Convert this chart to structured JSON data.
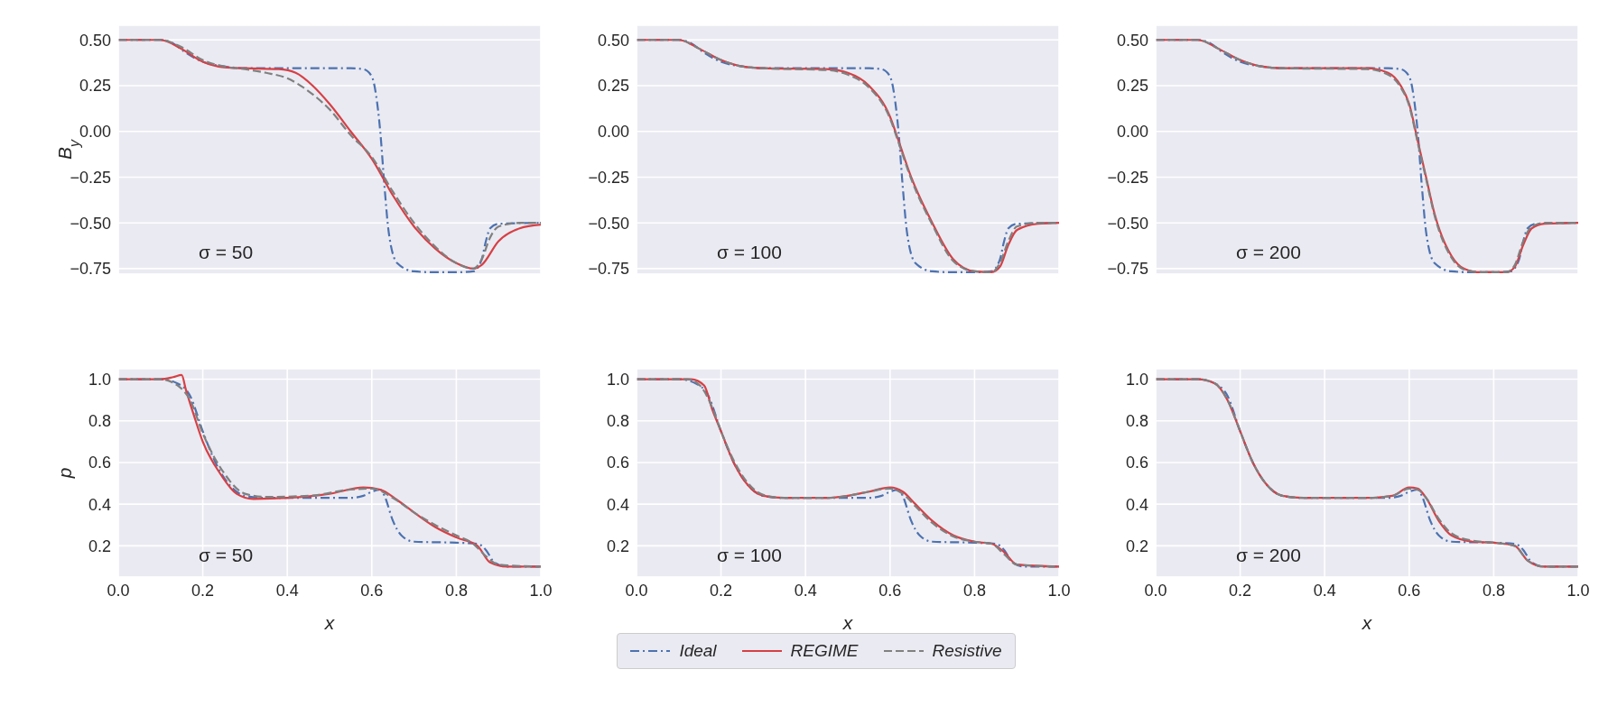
{
  "chart_data": [
    {
      "type": "line",
      "ylabel": "B$_{y}$",
      "annotations": [
        "σ = 50"
      ],
      "xlim": [
        0,
        1
      ],
      "ylim": [
        -0.78,
        0.58
      ],
      "xticks": [
        {
          "value": 0,
          "label": null
        },
        {
          "value": 0.2,
          "label": null
        },
        {
          "value": 0.4,
          "label": null
        },
        {
          "value": 0.6,
          "label": null
        },
        {
          "value": 0.8,
          "label": null
        },
        {
          "value": 1,
          "label": null
        }
      ],
      "yticks": [
        {
          "value": -0.75,
          "label": "−0.75"
        },
        {
          "value": -0.5,
          "label": "−0.50"
        },
        {
          "value": -0.25,
          "label": "−0.25"
        },
        {
          "value": 0,
          "label": "0.00"
        },
        {
          "value": 0.25,
          "label": "0.25"
        },
        {
          "value": 0.5,
          "label": "0.50"
        }
      ],
      "grid": true,
      "tick_labels": "y",
      "series": [
        {
          "color": "#4c72b0",
          "line_style": "dashdot",
          "x": [
            0,
            0.1,
            0.13,
            0.16,
            0.2,
            0.25,
            0.3,
            0.4,
            0.55,
            0.58,
            0.6,
            0.61,
            0.62,
            0.63,
            0.64,
            0.66,
            0.7,
            0.75,
            0.8,
            0.84,
            0.86,
            0.87,
            0.88,
            0.9,
            1
          ],
          "values": [
            0.5,
            0.5,
            0.48,
            0.43,
            0.38,
            0.355,
            0.345,
            0.345,
            0.345,
            0.34,
            0.3,
            0.2,
            0,
            -0.3,
            -0.55,
            -0.72,
            -0.765,
            -0.77,
            -0.77,
            -0.765,
            -0.7,
            -0.6,
            -0.53,
            -0.505,
            -0.5
          ]
        },
        {
          "color": "#d64045",
          "line_style": "solid",
          "x": [
            0,
            0.1,
            0.15,
            0.2,
            0.25,
            0.3,
            0.38,
            0.42,
            0.46,
            0.5,
            0.55,
            0.6,
            0.65,
            0.7,
            0.75,
            0.8,
            0.84,
            0.86,
            0.9,
            0.95,
            1
          ],
          "values": [
            0.5,
            0.5,
            0.45,
            0.38,
            0.35,
            0.345,
            0.34,
            0.32,
            0.25,
            0.15,
            0,
            -0.15,
            -0.35,
            -0.52,
            -0.64,
            -0.72,
            -0.75,
            -0.73,
            -0.6,
            -0.53,
            -0.51
          ]
        },
        {
          "color": "#808080",
          "line_style": "dashed",
          "x": [
            0,
            0.1,
            0.15,
            0.2,
            0.25,
            0.3,
            0.35,
            0.4,
            0.45,
            0.5,
            0.55,
            0.6,
            0.65,
            0.7,
            0.75,
            0.8,
            0.84,
            0.86,
            0.88,
            0.9,
            0.95,
            1
          ],
          "values": [
            0.5,
            0.5,
            0.46,
            0.39,
            0.355,
            0.34,
            0.32,
            0.29,
            0.22,
            0.12,
            -0.02,
            -0.14,
            -0.33,
            -0.5,
            -0.63,
            -0.72,
            -0.75,
            -0.7,
            -0.58,
            -0.52,
            -0.5,
            -0.5
          ]
        }
      ]
    },
    {
      "type": "line",
      "annotations": [
        "σ = 100"
      ],
      "xlim": [
        0,
        1
      ],
      "ylim": [
        -0.78,
        0.58
      ],
      "xticks": [
        {
          "value": 0,
          "label": null
        },
        {
          "value": 0.2,
          "label": null
        },
        {
          "value": 0.4,
          "label": null
        },
        {
          "value": 0.6,
          "label": null
        },
        {
          "value": 0.8,
          "label": null
        },
        {
          "value": 1,
          "label": null
        }
      ],
      "yticks": [
        {
          "value": -0.75,
          "label": "−0.75"
        },
        {
          "value": -0.5,
          "label": "−0.50"
        },
        {
          "value": -0.25,
          "label": "−0.25"
        },
        {
          "value": 0,
          "label": "0.00"
        },
        {
          "value": 0.25,
          "label": "0.25"
        },
        {
          "value": 0.5,
          "label": "0.50"
        }
      ],
      "grid": true,
      "tick_labels": "y",
      "series": [
        {
          "color": "#4c72b0",
          "line_style": "dashdot",
          "x": [
            0,
            0.1,
            0.13,
            0.16,
            0.2,
            0.25,
            0.3,
            0.4,
            0.55,
            0.58,
            0.6,
            0.61,
            0.62,
            0.63,
            0.64,
            0.66,
            0.7,
            0.75,
            0.8,
            0.84,
            0.86,
            0.87,
            0.88,
            0.9,
            1
          ],
          "values": [
            0.5,
            0.5,
            0.48,
            0.43,
            0.38,
            0.355,
            0.345,
            0.345,
            0.345,
            0.34,
            0.3,
            0.2,
            0,
            -0.3,
            -0.55,
            -0.72,
            -0.765,
            -0.77,
            -0.77,
            -0.765,
            -0.7,
            -0.6,
            -0.53,
            -0.505,
            -0.5
          ]
        },
        {
          "color": "#d64045",
          "line_style": "solid",
          "x": [
            0,
            0.1,
            0.15,
            0.2,
            0.25,
            0.3,
            0.45,
            0.5,
            0.55,
            0.6,
            0.62,
            0.65,
            0.7,
            0.75,
            0.8,
            0.84,
            0.86,
            0.88,
            0.9,
            0.95,
            1
          ],
          "values": [
            0.5,
            0.5,
            0.45,
            0.39,
            0.355,
            0.345,
            0.34,
            0.32,
            0.25,
            0.08,
            -0.05,
            -0.25,
            -0.5,
            -0.7,
            -0.765,
            -0.77,
            -0.74,
            -0.62,
            -0.54,
            -0.505,
            -0.5
          ]
        },
        {
          "color": "#808080",
          "line_style": "dashed",
          "x": [
            0,
            0.1,
            0.15,
            0.2,
            0.25,
            0.3,
            0.45,
            0.5,
            0.55,
            0.6,
            0.62,
            0.65,
            0.7,
            0.75,
            0.8,
            0.84,
            0.86,
            0.88,
            0.9,
            0.95,
            1
          ],
          "values": [
            0.5,
            0.5,
            0.45,
            0.39,
            0.355,
            0.345,
            0.335,
            0.31,
            0.24,
            0.07,
            -0.06,
            -0.26,
            -0.51,
            -0.71,
            -0.765,
            -0.77,
            -0.72,
            -0.6,
            -0.52,
            -0.5,
            -0.5
          ]
        }
      ]
    },
    {
      "type": "line",
      "annotations": [
        "σ = 200"
      ],
      "xlim": [
        0,
        1
      ],
      "ylim": [
        -0.78,
        0.58
      ],
      "xticks": [
        {
          "value": 0,
          "label": null
        },
        {
          "value": 0.2,
          "label": null
        },
        {
          "value": 0.4,
          "label": null
        },
        {
          "value": 0.6,
          "label": null
        },
        {
          "value": 0.8,
          "label": null
        },
        {
          "value": 1,
          "label": null
        }
      ],
      "yticks": [
        {
          "value": -0.75,
          "label": "−0.75"
        },
        {
          "value": -0.5,
          "label": "−0.50"
        },
        {
          "value": -0.25,
          "label": "−0.25"
        },
        {
          "value": 0,
          "label": "0.00"
        },
        {
          "value": 0.25,
          "label": "0.25"
        },
        {
          "value": 0.5,
          "label": "0.50"
        }
      ],
      "grid": true,
      "tick_labels": "y",
      "series": [
        {
          "color": "#4c72b0",
          "line_style": "dashdot",
          "x": [
            0,
            0.1,
            0.13,
            0.16,
            0.2,
            0.25,
            0.3,
            0.4,
            0.55,
            0.58,
            0.6,
            0.61,
            0.62,
            0.63,
            0.64,
            0.66,
            0.7,
            0.75,
            0.8,
            0.84,
            0.86,
            0.87,
            0.88,
            0.9,
            1
          ],
          "values": [
            0.5,
            0.5,
            0.48,
            0.43,
            0.38,
            0.355,
            0.345,
            0.345,
            0.345,
            0.34,
            0.3,
            0.2,
            0,
            -0.3,
            -0.55,
            -0.72,
            -0.765,
            -0.77,
            -0.77,
            -0.765,
            -0.7,
            -0.6,
            -0.53,
            -0.505,
            -0.5
          ]
        },
        {
          "color": "#d64045",
          "line_style": "solid",
          "x": [
            0,
            0.1,
            0.15,
            0.2,
            0.25,
            0.3,
            0.5,
            0.55,
            0.58,
            0.6,
            0.62,
            0.64,
            0.66,
            0.7,
            0.73,
            0.77,
            0.83,
            0.85,
            0.87,
            0.89,
            0.92,
            1
          ],
          "values": [
            0.5,
            0.5,
            0.45,
            0.39,
            0.355,
            0.345,
            0.345,
            0.32,
            0.25,
            0.15,
            -0.05,
            -0.25,
            -0.45,
            -0.68,
            -0.75,
            -0.77,
            -0.77,
            -0.74,
            -0.62,
            -0.53,
            -0.505,
            -0.5
          ]
        },
        {
          "color": "#808080",
          "line_style": "dashed",
          "x": [
            0,
            0.1,
            0.15,
            0.2,
            0.25,
            0.3,
            0.5,
            0.55,
            0.58,
            0.6,
            0.62,
            0.64,
            0.66,
            0.7,
            0.73,
            0.77,
            0.83,
            0.85,
            0.87,
            0.89,
            0.92,
            1
          ],
          "values": [
            0.5,
            0.5,
            0.45,
            0.39,
            0.355,
            0.345,
            0.34,
            0.31,
            0.24,
            0.14,
            -0.06,
            -0.26,
            -0.46,
            -0.69,
            -0.755,
            -0.77,
            -0.77,
            -0.73,
            -0.6,
            -0.52,
            -0.5,
            -0.5
          ]
        }
      ]
    },
    {
      "type": "line",
      "xlabel": "x",
      "ylabel": "p",
      "annotations": [
        "σ = 50"
      ],
      "xlim": [
        0,
        1
      ],
      "ylim": [
        0.05,
        1.05
      ],
      "xticks": [
        {
          "value": 0,
          "label": "0.0"
        },
        {
          "value": 0.2,
          "label": "0.2"
        },
        {
          "value": 0.4,
          "label": "0.4"
        },
        {
          "value": 0.6,
          "label": "0.6"
        },
        {
          "value": 0.8,
          "label": "0.8"
        },
        {
          "value": 1,
          "label": "1.0"
        }
      ],
      "yticks": [
        0.2,
        0.4,
        0.6,
        0.8,
        {
          "value": 1,
          "label": "1.0"
        }
      ],
      "grid": true,
      "series": [
        {
          "color": "#4c72b0",
          "line_style": "dashdot",
          "x": [
            0,
            0.1,
            0.14,
            0.17,
            0.2,
            0.23,
            0.26,
            0.3,
            0.35,
            0.55,
            0.58,
            0.6,
            0.62,
            0.63,
            0.65,
            0.67,
            0.7,
            0.8,
            0.85,
            0.87,
            0.89,
            0.92,
            1
          ],
          "values": [
            1,
            1,
            0.98,
            0.92,
            0.75,
            0.6,
            0.5,
            0.44,
            0.43,
            0.43,
            0.44,
            0.46,
            0.47,
            0.44,
            0.32,
            0.25,
            0.22,
            0.215,
            0.21,
            0.18,
            0.12,
            0.1,
            0.1
          ]
        },
        {
          "color": "#d64045",
          "line_style": "solid",
          "x": [
            0,
            0.1,
            0.13,
            0.15,
            0.16,
            0.18,
            0.2,
            0.24,
            0.28,
            0.32,
            0.4,
            0.5,
            0.58,
            0.62,
            0.66,
            0.7,
            0.75,
            0.8,
            0.85,
            0.88,
            0.92,
            1
          ],
          "values": [
            1,
            1,
            1.01,
            1.02,
            0.95,
            0.82,
            0.7,
            0.55,
            0.45,
            0.425,
            0.43,
            0.45,
            0.48,
            0.47,
            0.42,
            0.36,
            0.29,
            0.24,
            0.2,
            0.12,
            0.1,
            0.1
          ]
        },
        {
          "color": "#808080",
          "line_style": "dashed",
          "x": [
            0,
            0.1,
            0.14,
            0.17,
            0.2,
            0.25,
            0.3,
            0.35,
            0.45,
            0.55,
            0.6,
            0.65,
            0.7,
            0.75,
            0.8,
            0.84,
            0.87,
            0.9,
            1
          ],
          "values": [
            1,
            1,
            0.97,
            0.9,
            0.74,
            0.55,
            0.45,
            0.435,
            0.44,
            0.47,
            0.475,
            0.43,
            0.36,
            0.3,
            0.25,
            0.21,
            0.15,
            0.11,
            0.1
          ]
        }
      ]
    },
    {
      "type": "line",
      "xlabel": "x",
      "annotations": [
        "σ = 100"
      ],
      "legend": "bottom",
      "xlim": [
        0,
        1
      ],
      "ylim": [
        0.05,
        1.05
      ],
      "xticks": [
        {
          "value": 0,
          "label": "0.0"
        },
        {
          "value": 0.2,
          "label": "0.2"
        },
        {
          "value": 0.4,
          "label": "0.4"
        },
        {
          "value": 0.6,
          "label": "0.6"
        },
        {
          "value": 0.8,
          "label": "0.8"
        },
        {
          "value": 1,
          "label": "1.0"
        }
      ],
      "yticks": [
        0.2,
        0.4,
        0.6,
        0.8,
        {
          "value": 1,
          "label": "1.0"
        }
      ],
      "grid": true,
      "series": [
        {
          "name": "Ideal",
          "color": "#4c72b0",
          "line_style": "dashdot",
          "x": [
            0,
            0.1,
            0.14,
            0.17,
            0.2,
            0.23,
            0.26,
            0.3,
            0.35,
            0.55,
            0.58,
            0.6,
            0.62,
            0.63,
            0.65,
            0.67,
            0.7,
            0.8,
            0.85,
            0.87,
            0.89,
            0.92,
            1
          ],
          "values": [
            1,
            1,
            0.98,
            0.92,
            0.75,
            0.6,
            0.5,
            0.44,
            0.43,
            0.43,
            0.44,
            0.46,
            0.47,
            0.44,
            0.32,
            0.25,
            0.22,
            0.215,
            0.21,
            0.18,
            0.12,
            0.1,
            0.1
          ]
        },
        {
          "name": "REGIME",
          "color": "#d64045",
          "line_style": "solid",
          "x": [
            0,
            0.13,
            0.16,
            0.18,
            0.2,
            0.23,
            0.26,
            0.3,
            0.35,
            0.45,
            0.5,
            0.55,
            0.6,
            0.63,
            0.66,
            0.7,
            0.75,
            0.8,
            0.84,
            0.87,
            0.9,
            1
          ],
          "values": [
            1,
            1,
            0.97,
            0.85,
            0.75,
            0.6,
            0.5,
            0.44,
            0.43,
            0.43,
            0.44,
            0.46,
            0.48,
            0.46,
            0.4,
            0.32,
            0.25,
            0.22,
            0.21,
            0.17,
            0.11,
            0.1
          ]
        },
        {
          "name": "Resistive",
          "color": "#808080",
          "line_style": "dashed",
          "x": [
            0,
            0.12,
            0.15,
            0.18,
            0.2,
            0.23,
            0.26,
            0.3,
            0.35,
            0.45,
            0.5,
            0.55,
            0.6,
            0.63,
            0.66,
            0.7,
            0.75,
            0.8,
            0.84,
            0.87,
            0.9,
            1
          ],
          "values": [
            1,
            1,
            0.97,
            0.86,
            0.75,
            0.61,
            0.51,
            0.445,
            0.43,
            0.43,
            0.44,
            0.46,
            0.475,
            0.45,
            0.39,
            0.31,
            0.245,
            0.22,
            0.21,
            0.16,
            0.11,
            0.1
          ]
        }
      ]
    },
    {
      "type": "line",
      "xlabel": "x",
      "annotations": [
        "σ = 200"
      ],
      "xlim": [
        0,
        1
      ],
      "ylim": [
        0.05,
        1.05
      ],
      "xticks": [
        {
          "value": 0,
          "label": "0.0"
        },
        {
          "value": 0.2,
          "label": "0.2"
        },
        {
          "value": 0.4,
          "label": "0.4"
        },
        {
          "value": 0.6,
          "label": "0.6"
        },
        {
          "value": 0.8,
          "label": "0.8"
        },
        {
          "value": 1,
          "label": "1.0"
        }
      ],
      "yticks": [
        0.2,
        0.4,
        0.6,
        0.8,
        {
          "value": 1,
          "label": "1.0"
        }
      ],
      "grid": true,
      "series": [
        {
          "color": "#4c72b0",
          "line_style": "dashdot",
          "x": [
            0,
            0.1,
            0.14,
            0.17,
            0.2,
            0.23,
            0.26,
            0.3,
            0.35,
            0.55,
            0.58,
            0.6,
            0.62,
            0.63,
            0.65,
            0.67,
            0.7,
            0.8,
            0.85,
            0.87,
            0.89,
            0.92,
            1
          ],
          "values": [
            1,
            1,
            0.98,
            0.92,
            0.75,
            0.6,
            0.5,
            0.44,
            0.43,
            0.43,
            0.44,
            0.46,
            0.47,
            0.44,
            0.32,
            0.25,
            0.22,
            0.215,
            0.21,
            0.18,
            0.12,
            0.1,
            0.1
          ]
        },
        {
          "color": "#d64045",
          "line_style": "solid",
          "x": [
            0,
            0.1,
            0.14,
            0.17,
            0.2,
            0.23,
            0.26,
            0.3,
            0.35,
            0.5,
            0.56,
            0.6,
            0.62,
            0.64,
            0.67,
            0.7,
            0.75,
            0.8,
            0.85,
            0.88,
            0.92,
            1
          ],
          "values": [
            1,
            1,
            0.98,
            0.9,
            0.75,
            0.6,
            0.5,
            0.44,
            0.43,
            0.43,
            0.44,
            0.48,
            0.475,
            0.43,
            0.32,
            0.25,
            0.22,
            0.215,
            0.2,
            0.13,
            0.1,
            0.1
          ]
        },
        {
          "color": "#808080",
          "line_style": "dashed",
          "x": [
            0,
            0.1,
            0.14,
            0.17,
            0.2,
            0.23,
            0.26,
            0.3,
            0.35,
            0.5,
            0.56,
            0.6,
            0.62,
            0.64,
            0.67,
            0.7,
            0.75,
            0.8,
            0.85,
            0.88,
            0.92,
            1
          ],
          "values": [
            1,
            1,
            0.98,
            0.9,
            0.75,
            0.6,
            0.5,
            0.44,
            0.43,
            0.43,
            0.44,
            0.475,
            0.47,
            0.43,
            0.33,
            0.26,
            0.225,
            0.215,
            0.2,
            0.13,
            0.1,
            0.1
          ]
        }
      ]
    }
  ]
}
